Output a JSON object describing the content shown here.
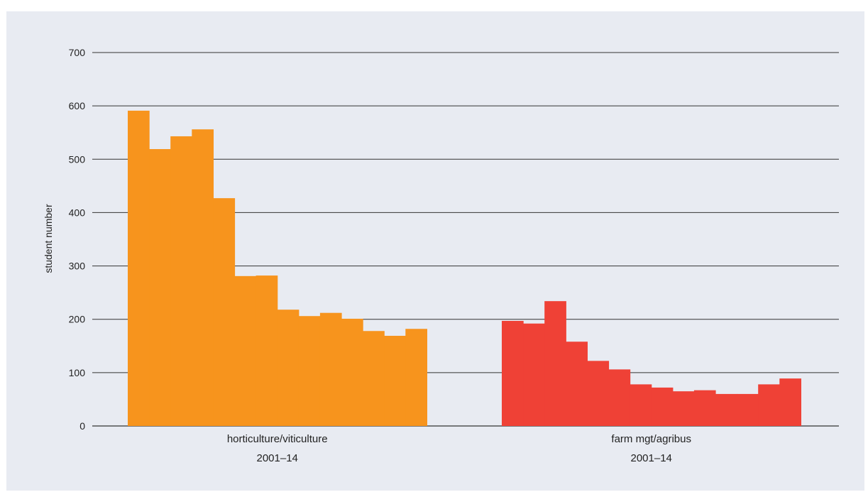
{
  "chart_data": {
    "type": "bar",
    "ylabel": "student number",
    "ylim": [
      0,
      700
    ],
    "yticks": [
      0,
      100,
      200,
      300,
      400,
      500,
      600,
      700
    ],
    "grid": true,
    "groups": [
      {
        "label_line1": "horticulture/viticulture",
        "label_line2": "2001–14",
        "color": "#f7941d",
        "x": [
          2001,
          2002,
          2003,
          2004,
          2005,
          2006,
          2007,
          2008,
          2009,
          2010,
          2011,
          2012,
          2013,
          2014
        ],
        "values": [
          591,
          519,
          543,
          556,
          427,
          281,
          282,
          218,
          206,
          212,
          201,
          178,
          169,
          182
        ]
      },
      {
        "label_line1": "farm mgt/agribus",
        "label_line2": "2001–14",
        "color": "#ef4136",
        "x": [
          2001,
          2002,
          2003,
          2004,
          2005,
          2006,
          2007,
          2008,
          2009,
          2010,
          2011,
          2012,
          2013,
          2014
        ],
        "values": [
          197,
          192,
          234,
          158,
          122,
          106,
          78,
          72,
          65,
          67,
          60,
          60,
          78,
          89
        ]
      }
    ]
  }
}
